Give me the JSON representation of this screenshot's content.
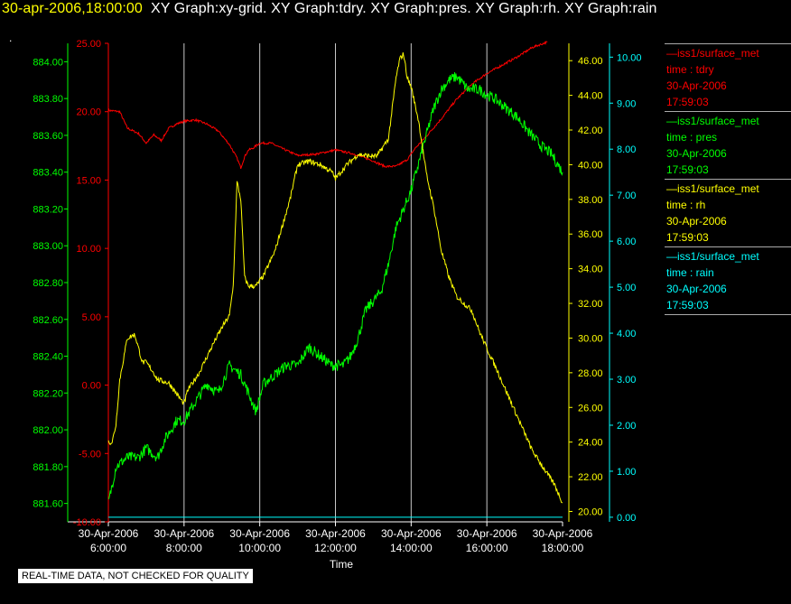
{
  "header": {
    "timestamp": "30-apr-2006,18:00:00",
    "graphs": "XY Graph:xy-grid.  XY Graph:tdry.  XY Graph:pres.  XY Graph:rh.  XY Graph:rain",
    "dot": "."
  },
  "colors": {
    "tdry": "#ff0000",
    "pres": "#00ff00",
    "rh": "#ffff00",
    "rain": "#00ffff",
    "grid": "#c8c8c8",
    "axis_text": "#ffffff"
  },
  "legend": [
    {
      "series": "—iss1/surface_met",
      "time": "time : tdry",
      "date": "30-Apr-2006",
      "clock": "17:59:03",
      "color": "#ff0000"
    },
    {
      "series": "—iss1/surface_met",
      "time": "time : pres",
      "date": "30-Apr-2006",
      "clock": "17:59:03",
      "color": "#00ff00"
    },
    {
      "series": "—iss1/surface_met",
      "time": "time : rh",
      "date": "30-Apr-2006",
      "clock": "17:59:03",
      "color": "#ffff00"
    },
    {
      "series": "—iss1/surface_met",
      "time": "time : rain",
      "date": "30-Apr-2006",
      "clock": "17:59:03",
      "color": "#00ffff"
    }
  ],
  "note": "REAL-TIME DATA, NOT CHECKED FOR QUALITY",
  "chart_data": {
    "type": "line",
    "title": "",
    "xlabel": "Time",
    "x_ticks": [
      {
        "date": "30-Apr-2006",
        "time": "6:00:00"
      },
      {
        "date": "30-Apr-2006",
        "time": "8:00:00"
      },
      {
        "date": "30-Apr-2006",
        "time": "10:00:00"
      },
      {
        "date": "30-Apr-2006",
        "time": "12:00:00"
      },
      {
        "date": "30-Apr-2006",
        "time": "14:00:00"
      },
      {
        "date": "30-Apr-2006",
        "time": "16:00:00"
      },
      {
        "date": "30-Apr-2006",
        "time": "18:00:00"
      }
    ],
    "xlim": [
      "30-Apr-2006 06:00:00",
      "30-Apr-2006 18:00:00"
    ],
    "grid": true,
    "axes": {
      "pres": {
        "range": [
          881.5,
          884.1
        ],
        "ticks": [
          "881.60",
          "881.80",
          "882.00",
          "882.20",
          "882.40",
          "882.60",
          "882.80",
          "883.00",
          "883.20",
          "883.40",
          "883.60",
          "883.80",
          "884.00"
        ]
      },
      "tdry": {
        "range": [
          -10,
          25
        ],
        "ticks": [
          "-10.00",
          "-5.00",
          "0.00",
          "5.00",
          "10.00",
          "15.00",
          "20.00",
          "25.00"
        ]
      },
      "rh": {
        "range": [
          19.4,
          47.0
        ],
        "ticks": [
          "20.00",
          "22.00",
          "24.00",
          "26.00",
          "28.00",
          "30.00",
          "32.00",
          "34.00",
          "36.00",
          "38.00",
          "40.00",
          "42.00",
          "44.00",
          "46.00"
        ]
      },
      "rain": {
        "range": [
          -0.1,
          10.3
        ],
        "ticks": [
          "0.00",
          "1.00",
          "2.00",
          "3.00",
          "4.00",
          "5.00",
          "6.00",
          "7.00",
          "8.00",
          "9.00",
          "10.00"
        ]
      }
    },
    "series": [
      {
        "key": "tdry",
        "x_hours": [
          6.0,
          6.3,
          6.5,
          6.8,
          7.0,
          7.2,
          7.4,
          7.6,
          7.8,
          8.0,
          8.3,
          8.6,
          8.9,
          9.2,
          9.4,
          9.5,
          9.6,
          9.7,
          9.8,
          10.0,
          10.3,
          10.6,
          11.0,
          11.5,
          12.0,
          12.5,
          13.0,
          13.3,
          13.6,
          13.9,
          14.1,
          14.4,
          14.8,
          15.2,
          15.6,
          16.0,
          16.4,
          16.8,
          17.2,
          17.6
        ],
        "values": [
          20.1,
          20.0,
          18.8,
          18.4,
          17.7,
          18.3,
          17.9,
          18.8,
          19.1,
          19.3,
          19.4,
          19.1,
          18.6,
          17.6,
          16.6,
          15.9,
          16.7,
          17.2,
          17.3,
          17.7,
          17.7,
          17.3,
          16.8,
          16.9,
          17.2,
          16.9,
          16.4,
          16.0,
          16.0,
          16.5,
          17.3,
          18.2,
          19.5,
          20.9,
          22.0,
          22.8,
          23.4,
          24.0,
          24.7,
          25.1
        ]
      },
      {
        "key": "pres",
        "x_hours": [
          6.0,
          6.2,
          6.5,
          6.8,
          7.0,
          7.3,
          7.5,
          7.8,
          8.0,
          8.3,
          8.6,
          8.9,
          9.2,
          9.5,
          9.7,
          9.9,
          10.1,
          10.4,
          10.7,
          11.0,
          11.3,
          11.6,
          11.9,
          12.2,
          12.4,
          12.6,
          12.8,
          13.0,
          13.2,
          13.4,
          13.6,
          13.8,
          14.0,
          14.2,
          14.4,
          14.6,
          14.8,
          15.0,
          15.2,
          15.5,
          15.8,
          16.0,
          16.2,
          16.5,
          16.8,
          17.1,
          17.4,
          17.7,
          18.0
        ],
        "values": [
          881.6,
          881.8,
          881.85,
          881.85,
          881.9,
          881.85,
          881.95,
          882.05,
          882.05,
          882.15,
          882.25,
          882.2,
          882.35,
          882.3,
          882.2,
          882.1,
          882.25,
          882.3,
          882.35,
          882.35,
          882.45,
          882.4,
          882.35,
          882.35,
          882.4,
          882.5,
          882.65,
          882.7,
          882.75,
          882.9,
          883.1,
          883.2,
          883.3,
          883.45,
          883.6,
          883.75,
          883.85,
          883.9,
          883.92,
          883.85,
          883.85,
          883.82,
          883.8,
          883.75,
          883.7,
          883.62,
          883.55,
          883.5,
          883.4
        ]
      },
      {
        "key": "rh",
        "x_hours": [
          6.0,
          6.1,
          6.2,
          6.3,
          6.5,
          6.7,
          6.9,
          7.0,
          7.2,
          7.3,
          7.6,
          8.0,
          8.1,
          8.4,
          8.8,
          9.0,
          9.2,
          9.3,
          9.4,
          9.5,
          9.6,
          9.7,
          9.9,
          10.1,
          10.4,
          10.6,
          10.8,
          11.0,
          11.3,
          11.6,
          11.9,
          12.0,
          12.3,
          12.6,
          12.9,
          13.1,
          13.4,
          13.6,
          13.7,
          13.8,
          13.9,
          14.0,
          14.2,
          14.4,
          14.6,
          14.8,
          15.0,
          15.2,
          15.4,
          15.6,
          15.8,
          16.0,
          16.3,
          16.6,
          16.9,
          17.2,
          17.5,
          17.8,
          18.0
        ],
        "values": [
          24.0,
          24.0,
          25.0,
          27.6,
          30.0,
          30.2,
          28.6,
          28.6,
          28.0,
          27.6,
          27.4,
          26.2,
          27.0,
          28.0,
          29.8,
          30.6,
          31.3,
          33.0,
          39.0,
          38.0,
          33.5,
          33.0,
          33.0,
          33.6,
          35.0,
          36.5,
          38.0,
          40.0,
          40.2,
          40.0,
          39.6,
          39.2,
          40.0,
          40.6,
          40.5,
          40.5,
          41.5,
          45.0,
          46.1,
          46.4,
          45.0,
          44.5,
          42.5,
          39.5,
          37.5,
          35.0,
          33.5,
          32.4,
          32.0,
          31.6,
          30.4,
          29.4,
          28.0,
          26.5,
          25.0,
          23.5,
          22.5,
          21.5,
          20.5
        ]
      },
      {
        "key": "rain",
        "x_hours": [
          6.0,
          18.0
        ],
        "values": [
          0.0,
          0.0
        ]
      }
    ]
  }
}
